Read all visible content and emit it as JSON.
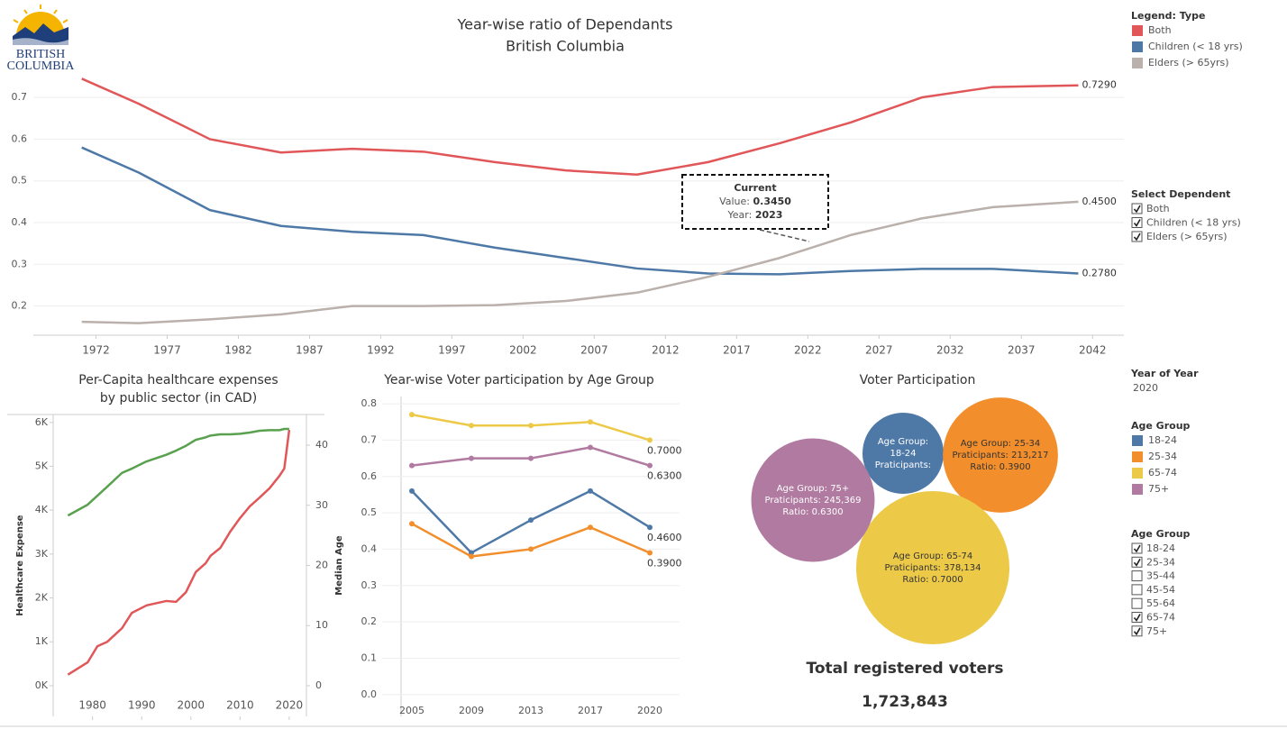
{
  "logo": {
    "line1": "BRITISH",
    "line2": "COLUMBIA"
  },
  "chart_data": [
    {
      "type": "line",
      "title": "Year-wise ratio of Dependants",
      "subtitle": "British Columbia",
      "x": [
        1971,
        1975,
        1980,
        1985,
        1990,
        1995,
        2000,
        2005,
        2010,
        2015,
        2020,
        2025,
        2030,
        2035,
        2041
      ],
      "series": [
        {
          "name": "Both",
          "color": "#e15759",
          "values": [
            0.745,
            0.685,
            0.6,
            0.568,
            0.577,
            0.57,
            0.545,
            0.525,
            0.515,
            0.545,
            0.59,
            0.64,
            0.7,
            0.725,
            0.729
          ],
          "end_label": "0.7290"
        },
        {
          "name": "Children (< 18 yrs)",
          "color": "#4e79a7",
          "values": [
            0.58,
            0.52,
            0.43,
            0.392,
            0.378,
            0.37,
            0.34,
            0.315,
            0.29,
            0.278,
            0.276,
            0.284,
            0.289,
            0.289,
            0.278
          ],
          "end_label": "0.2780"
        },
        {
          "name": "Elders (> 65yrs)",
          "color": "#bab0ac",
          "values": [
            0.162,
            0.159,
            0.168,
            0.18,
            0.2,
            0.2,
            0.202,
            0.212,
            0.232,
            0.27,
            0.315,
            0.37,
            0.41,
            0.437,
            0.45
          ],
          "end_label": "0.4500"
        }
      ],
      "xlim": [
        1967.6,
        2044.2
      ],
      "xticks": [
        1972,
        1977,
        1982,
        1987,
        1992,
        1997,
        2002,
        2007,
        2012,
        2017,
        2022,
        2027,
        2032,
        2037,
        2042
      ],
      "ylim": [
        0.13,
        0.75
      ],
      "yticks": [
        0.2,
        0.3,
        0.4,
        0.5,
        0.6,
        0.7
      ],
      "grid": true,
      "legend_title": "Legend: Type",
      "annotation": {
        "title": "Current",
        "value_prefix": "Value: ",
        "value": "0.3450",
        "year_prefix": "Year: ",
        "year": "2023"
      }
    },
    {
      "type": "line",
      "title": "Per-Capita healthcare expenses",
      "subtitle": "by public sector (in CAD)",
      "x": [
        1975,
        1979,
        1981,
        1983,
        1986,
        1988,
        1991,
        1995,
        1997,
        1999,
        2001,
        2003,
        2004,
        2006,
        2008,
        2010,
        2012,
        2014,
        2016,
        2018,
        2019,
        2020
      ],
      "series": [
        {
          "color": "#e15759",
          "values": [
            250,
            530,
            900,
            1000,
            1310,
            1660,
            1830,
            1930,
            1910,
            2130,
            2590,
            2790,
            2960,
            3140,
            3510,
            3820,
            4090,
            4290,
            4500,
            4780,
            4950,
            5830
          ]
        },
        {
          "color": "#59a14f",
          "axis": "y2",
          "values": [
            28.3,
            30.1,
            31.6,
            33.1,
            35.4,
            36.1,
            37.3,
            38.4,
            39.1,
            39.9,
            40.9,
            41.3,
            41.6,
            41.8,
            41.8,
            41.9,
            42.1,
            42.4,
            42.5,
            42.5,
            42.7,
            42.7
          ]
        }
      ],
      "xlim": [
        1972,
        2023.5
      ],
      "xticks": [
        1980,
        1990,
        2000,
        2010,
        2020
      ],
      "ylim": [
        -700,
        6180
      ],
      "yticks": [
        {
          "value": 0,
          "label": "0K"
        },
        {
          "value": 1000,
          "label": "1K"
        },
        {
          "value": 2000,
          "label": "2K"
        },
        {
          "value": 3000,
          "label": "3K"
        },
        {
          "value": 4000,
          "label": "4K"
        },
        {
          "value": 5000,
          "label": "5K"
        },
        {
          "value": 6000,
          "label": "6K"
        }
      ],
      "y2lim": [
        -5.1,
        45.1
      ],
      "y2ticks": [
        0,
        10,
        20,
        30,
        40
      ],
      "ylabel": "Healthcare Expense",
      "y2label": "Median Age",
      "grid": false
    },
    {
      "type": "line",
      "title": "Year-wise Voter participation by Age Group",
      "categories": [
        "2005",
        "2009",
        "2013",
        "2017",
        "2020"
      ],
      "series": [
        {
          "color": "#edc948",
          "values": [
            0.77,
            0.74,
            0.74,
            0.75,
            0.7
          ],
          "end_label": "0.7000"
        },
        {
          "color": "#b07aa1",
          "values": [
            0.63,
            0.65,
            0.65,
            0.68,
            0.63
          ],
          "end_label": "0.6300"
        },
        {
          "color": "#4e79a7",
          "values": [
            0.56,
            0.39,
            0.48,
            0.56,
            0.46
          ],
          "end_label": "0.4600"
        },
        {
          "color": "#f28e2b",
          "values": [
            0.47,
            0.38,
            0.4,
            0.46,
            0.39
          ],
          "end_label": "0.3900"
        }
      ],
      "ylim": [
        -0.06,
        0.82
      ],
      "yticks": [
        {
          "value": 0,
          "label": "0.0"
        },
        0.1,
        0.2,
        0.3,
        0.4,
        0.5,
        0.6,
        0.7,
        0.8
      ],
      "grid": true,
      "markers": true
    },
    {
      "type": "bubble",
      "title": "Voter Participation",
      "categories": [
        "18-24",
        "25-34",
        "65-74",
        "75+"
      ],
      "colors": [
        "#4e79a7",
        "#f28e2b",
        "#edc948",
        "#b07aa1"
      ],
      "values": [
        null,
        213217,
        378134,
        245369
      ],
      "labels": [
        [
          "Age Group:",
          "18-24",
          "Praticipants:"
        ],
        [
          "Age Group: 25-34",
          "Praticipants: 213,217",
          "Ratio: 0.3900"
        ],
        [
          "Age Group: 65-74",
          "Praticipants: 378,134",
          "Ratio: 0.7000"
        ],
        [
          "Age Group: 75+",
          "Praticipants: 245,369",
          "Ratio: 0.6300"
        ]
      ],
      "legend_title": "Age Group",
      "total_title": "Total registered voters",
      "total_value": "1,723,843"
    }
  ],
  "select_dependent": {
    "title": "Select Dependent",
    "options": [
      {
        "label": "Both",
        "checked": true
      },
      {
        "label": "Children (< 18 yrs)",
        "checked": true
      },
      {
        "label": "Elders (> 65yrs)",
        "checked": true
      }
    ]
  },
  "year_filter": {
    "title": "Year of Year",
    "value": "2020"
  },
  "age_filter": {
    "title": "Age Group",
    "options": [
      {
        "label": "18-24",
        "checked": true
      },
      {
        "label": "25-34",
        "checked": true
      },
      {
        "label": "35-44",
        "checked": false
      },
      {
        "label": "45-54",
        "checked": false
      },
      {
        "label": "55-64",
        "checked": false
      },
      {
        "label": "65-74",
        "checked": true
      },
      {
        "label": "75+",
        "checked": true
      }
    ]
  }
}
